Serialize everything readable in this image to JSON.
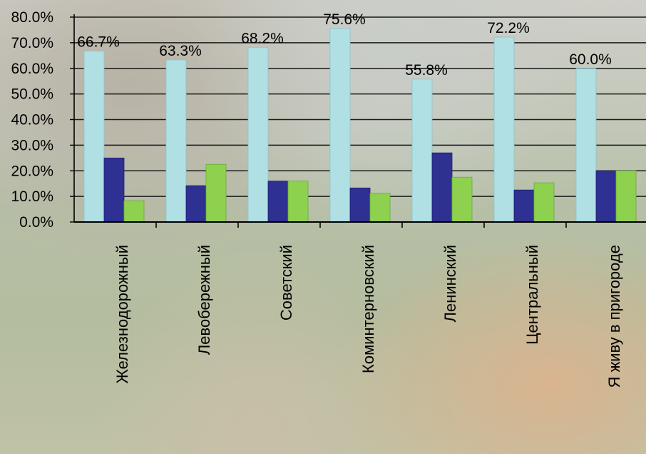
{
  "chart_data": {
    "type": "bar",
    "title": "",
    "xlabel": "",
    "ylabel": "",
    "ylim": [
      0,
      80
    ],
    "yticks": [
      "0.0%",
      "10.0%",
      "20.0%",
      "30.0%",
      "40.0%",
      "50.0%",
      "60.0%",
      "70.0%",
      "80.0%"
    ],
    "grid": true,
    "categories": [
      "Железнодорожный",
      "Левобережный",
      "Советский",
      "Коминтерновский",
      "Ленинский",
      "Центральный",
      "Я живу в пригороде"
    ],
    "series": [
      {
        "color": "#b0e0e4",
        "values": [
          66.7,
          63.3,
          68.2,
          75.6,
          55.8,
          72.2,
          60.0
        ],
        "labels": [
          "66.7%",
          "63.3%",
          "68.2%",
          "75.6%",
          "55.8%",
          "72.2%",
          "60.0%"
        ]
      },
      {
        "color": "#2e3192",
        "values": [
          25.0,
          14.2,
          16.0,
          13.3,
          27.0,
          12.5,
          20.0
        ]
      },
      {
        "color": "#8dd14f",
        "values": [
          8.3,
          22.5,
          16.0,
          11.2,
          17.5,
          15.3,
          20.0
        ]
      }
    ]
  }
}
